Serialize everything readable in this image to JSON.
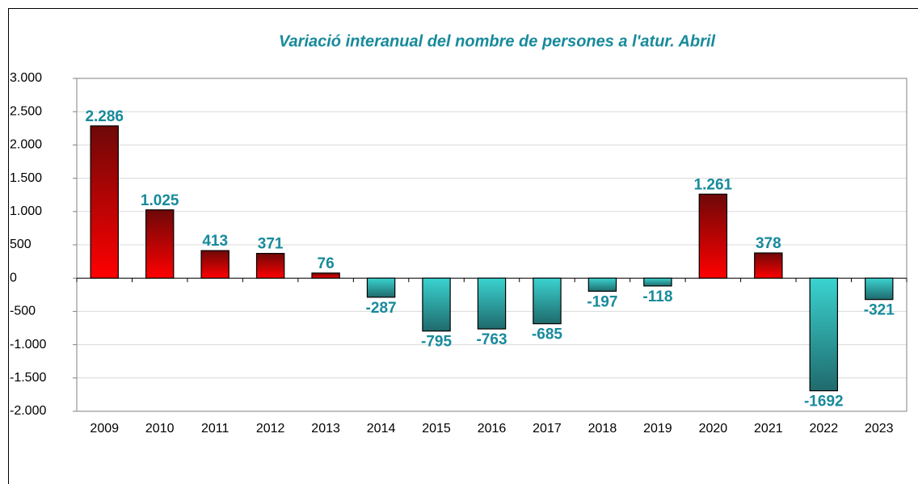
{
  "chart_data": {
    "type": "bar",
    "title": "Variació interanual del nombre de persones a l'atur. Abril",
    "categories": [
      "2009",
      "2010",
      "2011",
      "2012",
      "2013",
      "2014",
      "2015",
      "2016",
      "2017",
      "2018",
      "2019",
      "2020",
      "2021",
      "2022",
      "2023"
    ],
    "values": [
      2286,
      1025,
      413,
      371,
      76,
      -287,
      -795,
      -763,
      -685,
      -197,
      -118,
      1261,
      378,
      -1692,
      -321
    ],
    "value_labels": [
      "2.286",
      "1.025",
      "413",
      "371",
      "76",
      "-287",
      "-795",
      "-763",
      "-685",
      "-197",
      "-118",
      "1.261",
      "378",
      "-1692",
      "-321"
    ],
    "color_positive": [
      "#6e0808",
      "#ff0000"
    ],
    "color_negative": [
      "#3ad3d0",
      "#1f6a6c"
    ],
    "ylim": [
      -2000,
      3000
    ],
    "yticks": [
      {
        "value": -2000,
        "label": "-2.000"
      },
      {
        "value": -1500,
        "label": "-1.500"
      },
      {
        "value": -1000,
        "label": "-1.000"
      },
      -500,
      0,
      500,
      {
        "value": 1000,
        "label": "1.000"
      },
      {
        "value": 1500,
        "label": "1.500"
      },
      {
        "value": 2000,
        "label": "2.000"
      },
      {
        "value": 2500,
        "label": "2.500"
      },
      {
        "value": 3000,
        "label": "3.000"
      }
    ],
    "grid": true
  }
}
